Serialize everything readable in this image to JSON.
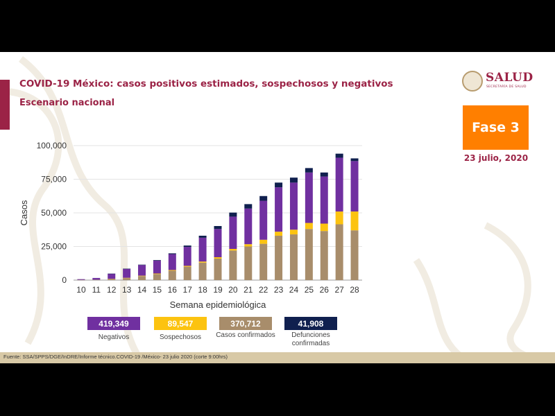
{
  "header": {
    "title": "COVID-19 México: casos positivos estimados, sospechosos y negativos",
    "subtitle": "Escenario nacional"
  },
  "logo": {
    "text": "SALUD",
    "sub": "SECRETARÍA DE SALUD"
  },
  "phase": {
    "label": "Fase 3",
    "color": "#ff7f00"
  },
  "report_date": "23 julio, 2020",
  "legend": [
    {
      "value": "419,349",
      "label": "Negativos",
      "color": "#7030a0"
    },
    {
      "value": "89,547",
      "label": "Sospechosos",
      "color": "#fcc310"
    },
    {
      "value": "370,712",
      "label": "Casos confirmados",
      "color": "#a88d6b"
    },
    {
      "value": "41,908",
      "label": "Defunciones confirmadas",
      "color": "#10204f"
    }
  ],
  "footer": {
    "source": "Fuente: SSA/SPPS/DGE/InDRE/Informe técnico.COVID-19 /México- 23 julio 2020 (corte 9:00hrs)"
  },
  "chart_data": {
    "type": "bar",
    "stacked": true,
    "xlabel": "Semana epidemiológica",
    "ylabel": "Casos",
    "ylim": [
      0,
      100000
    ],
    "yticks": [
      0,
      25000,
      50000,
      75000,
      100000
    ],
    "ytick_labels": [
      "0",
      "25,000",
      "50,000",
      "75,000",
      "100,000"
    ],
    "categories": [
      "10",
      "11",
      "12",
      "13",
      "14",
      "15",
      "16",
      "17",
      "18",
      "19",
      "20",
      "21",
      "22",
      "23",
      "24",
      "25",
      "26",
      "27",
      "28"
    ],
    "grid": true,
    "series": [
      {
        "name": "Casos confirmados",
        "color": "#a88d6b",
        "values": [
          200,
          300,
          800,
          1500,
          3000,
          4500,
          7000,
          10000,
          13000,
          16000,
          22000,
          25000,
          27000,
          33000,
          34000,
          38000,
          36500,
          41500,
          37000
        ]
      },
      {
        "name": "Sospechosos",
        "color": "#fcc310",
        "values": [
          0,
          0,
          100,
          200,
          300,
          400,
          500,
          600,
          800,
          1000,
          1200,
          1700,
          3000,
          3000,
          3500,
          4500,
          5500,
          9500,
          14000
        ]
      },
      {
        "name": "Negativos",
        "color": "#7030a0",
        "values": [
          500,
          1300,
          3800,
          6600,
          7900,
          9600,
          11800,
          14100,
          17700,
          21000,
          24000,
          26500,
          29000,
          33000,
          35000,
          37500,
          35000,
          40000,
          37500
        ]
      },
      {
        "name": "Defunciones confirmadas",
        "color": "#10204f",
        "values": [
          0,
          0,
          100,
          200,
          300,
          400,
          600,
          1000,
          1500,
          2200,
          3000,
          3300,
          3500,
          3500,
          3700,
          3300,
          3000,
          3000,
          2000
        ]
      }
    ]
  }
}
